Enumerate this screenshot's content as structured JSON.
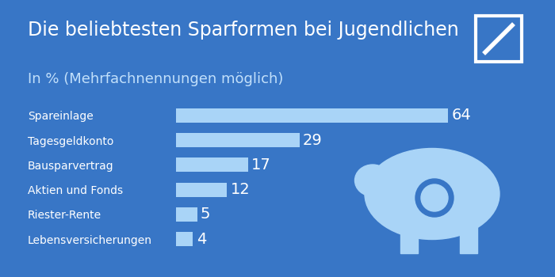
{
  "chart_data": {
    "type": "bar",
    "orientation": "horizontal",
    "title": "Die beliebtesten Sparformen bei Jugendlichen",
    "subtitle": "In % (Mehrfachnennungen möglich)",
    "categories": [
      "Spareinlage",
      "Tagesgeldkonto",
      "Bausparvertrag",
      "Aktien und Fonds",
      "Riester-Rente",
      "Lebensversicherungen"
    ],
    "values": [
      64,
      29,
      17,
      12,
      5,
      4
    ],
    "color": "#a9d4f7",
    "xlim": [
      0,
      80
    ],
    "data_labels": true,
    "tick_labels": "y",
    "grid": false
  }
}
